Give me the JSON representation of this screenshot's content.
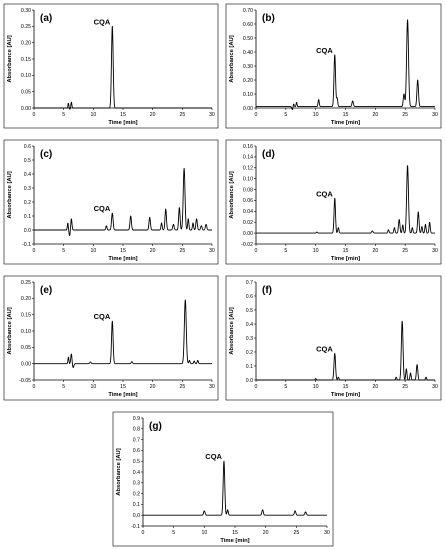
{
  "chart_data": [
    {
      "type": "line",
      "panel_label": "(a)",
      "xlabel": "Time [min]",
      "ylabel": "Absorbance [AU]",
      "xlim": [
        0,
        30
      ],
      "ylim": [
        0,
        0.3
      ],
      "xticks": [
        0,
        5,
        10,
        15,
        20,
        25,
        30
      ],
      "yticks": [
        0,
        0.05,
        0.1,
        0.15,
        0.2,
        0.25,
        0.3
      ],
      "ytick_labels": [
        "0.00",
        "0.05",
        "0.10",
        "0.15",
        "0.20",
        "0.25",
        "0.30"
      ],
      "annotations": [
        {
          "text": "CQA",
          "x": 13.2,
          "y": 0.25
        }
      ],
      "baseline": 0.0,
      "peaks": [
        {
          "x": 5.8,
          "y": 0.015,
          "w": 0.08
        },
        {
          "x": 6.3,
          "y": 0.018,
          "w": 0.08
        },
        {
          "x": 13.2,
          "y": 0.25,
          "w": 0.14
        }
      ],
      "dips": [
        {
          "x": 6.0,
          "y": -0.004,
          "w": 0.1
        }
      ]
    },
    {
      "type": "line",
      "panel_label": "(b)",
      "xlabel": "Time [min]",
      "ylabel": "Absorbance [AU]",
      "xlim": [
        0,
        30
      ],
      "ylim": [
        0,
        0.7
      ],
      "xticks": [
        0,
        5,
        10,
        15,
        20,
        25,
        30
      ],
      "yticks": [
        0,
        0.1,
        0.2,
        0.3,
        0.4,
        0.5,
        0.6,
        0.7
      ],
      "ytick_labels": [
        "0.00",
        "0.10",
        "0.20",
        "0.30",
        "0.40",
        "0.50",
        "0.60",
        "0.70"
      ],
      "annotations": [
        {
          "text": "CQA",
          "x": 13.2,
          "y": 0.38
        }
      ],
      "baseline": 0.01,
      "peaks": [
        {
          "x": 6.3,
          "y": 0.03,
          "w": 0.08
        },
        {
          "x": 6.8,
          "y": 0.04,
          "w": 0.08
        },
        {
          "x": 10.5,
          "y": 0.06,
          "w": 0.1
        },
        {
          "x": 13.2,
          "y": 0.38,
          "w": 0.13
        },
        {
          "x": 13.6,
          "y": 0.07,
          "w": 0.1
        },
        {
          "x": 16.2,
          "y": 0.05,
          "w": 0.12
        },
        {
          "x": 24.8,
          "y": 0.1,
          "w": 0.12
        },
        {
          "x": 25.4,
          "y": 0.63,
          "w": 0.16
        },
        {
          "x": 27.1,
          "y": 0.2,
          "w": 0.13
        }
      ],
      "dips": [
        {
          "x": 6.1,
          "y": -0.012,
          "w": 0.1
        }
      ]
    },
    {
      "type": "line",
      "panel_label": "(c)",
      "xlabel": "Time [min]",
      "ylabel": "Absorbance [AU]",
      "xlim": [
        0,
        30
      ],
      "ylim": [
        -0.1,
        0.6
      ],
      "xticks": [
        0,
        5,
        10,
        15,
        20,
        25,
        30
      ],
      "yticks": [
        -0.1,
        0,
        0.1,
        0.2,
        0.3,
        0.4,
        0.5,
        0.6
      ],
      "ytick_labels": [
        "-0.1",
        "0.0",
        "0.1",
        "0.2",
        "0.3",
        "0.4",
        "0.5",
        "0.6"
      ],
      "annotations": [
        {
          "text": "CQA",
          "x": 13.2,
          "y": 0.12
        }
      ],
      "baseline": 0.0,
      "peaks": [
        {
          "x": 5.7,
          "y": 0.05,
          "w": 0.08
        },
        {
          "x": 6.3,
          "y": 0.08,
          "w": 0.1
        },
        {
          "x": 12.2,
          "y": 0.03,
          "w": 0.1
        },
        {
          "x": 13.2,
          "y": 0.12,
          "w": 0.13
        },
        {
          "x": 16.3,
          "y": 0.1,
          "w": 0.12
        },
        {
          "x": 19.5,
          "y": 0.09,
          "w": 0.12
        },
        {
          "x": 21.5,
          "y": 0.05,
          "w": 0.1
        },
        {
          "x": 22.2,
          "y": 0.15,
          "w": 0.12
        },
        {
          "x": 23.5,
          "y": 0.04,
          "w": 0.12
        },
        {
          "x": 24.5,
          "y": 0.16,
          "w": 0.12
        },
        {
          "x": 25.3,
          "y": 0.44,
          "w": 0.15
        },
        {
          "x": 26.0,
          "y": 0.08,
          "w": 0.1
        },
        {
          "x": 26.8,
          "y": 0.05,
          "w": 0.1
        },
        {
          "x": 27.4,
          "y": 0.08,
          "w": 0.12
        },
        {
          "x": 28.2,
          "y": 0.03,
          "w": 0.12
        },
        {
          "x": 29.0,
          "y": 0.04,
          "w": 0.12
        }
      ],
      "dips": [
        {
          "x": 6.0,
          "y": -0.04,
          "w": 0.1
        }
      ]
    },
    {
      "type": "line",
      "panel_label": "(d)",
      "xlabel": "Time [min]",
      "ylabel": "Absorbance [AU]",
      "xlim": [
        0,
        30
      ],
      "ylim": [
        -0.02,
        0.16
      ],
      "xticks": [
        0,
        5,
        10,
        15,
        20,
        25,
        30
      ],
      "yticks": [
        -0.02,
        0,
        0.02,
        0.04,
        0.06,
        0.08,
        0.1,
        0.12,
        0.14,
        0.16
      ],
      "ytick_labels": [
        "-0.02",
        "0.00",
        "0.02",
        "0.04",
        "0.06",
        "0.08",
        "0.10",
        "0.12",
        "0.14",
        "0.16"
      ],
      "annotations": [
        {
          "text": "CQA",
          "x": 13.2,
          "y": 0.064
        }
      ],
      "baseline": 0.0,
      "peaks": [
        {
          "x": 10.2,
          "y": 0.002,
          "w": 0.1
        },
        {
          "x": 13.2,
          "y": 0.064,
          "w": 0.12
        },
        {
          "x": 13.8,
          "y": 0.01,
          "w": 0.1
        },
        {
          "x": 19.5,
          "y": 0.004,
          "w": 0.12
        },
        {
          "x": 22.2,
          "y": 0.006,
          "w": 0.1
        },
        {
          "x": 23.2,
          "y": 0.01,
          "w": 0.1
        },
        {
          "x": 24.0,
          "y": 0.025,
          "w": 0.12
        },
        {
          "x": 24.6,
          "y": 0.015,
          "w": 0.1
        },
        {
          "x": 25.4,
          "y": 0.124,
          "w": 0.15
        },
        {
          "x": 26.2,
          "y": 0.01,
          "w": 0.1
        },
        {
          "x": 27.2,
          "y": 0.039,
          "w": 0.12
        },
        {
          "x": 27.8,
          "y": 0.012,
          "w": 0.1
        },
        {
          "x": 28.4,
          "y": 0.016,
          "w": 0.1
        },
        {
          "x": 29.1,
          "y": 0.02,
          "w": 0.1
        }
      ],
      "dips": []
    },
    {
      "type": "line",
      "panel_label": "(e)",
      "xlabel": "Time [min]",
      "ylabel": "Absorbance [AU]",
      "xlim": [
        0,
        30
      ],
      "ylim": [
        -0.05,
        0.25
      ],
      "xticks": [
        0,
        5,
        10,
        15,
        20,
        25,
        30
      ],
      "yticks": [
        -0.05,
        0,
        0.05,
        0.1,
        0.15,
        0.2,
        0.25
      ],
      "ytick_labels": [
        "-0.05",
        "0.00",
        "0.05",
        "0.10",
        "0.15",
        "0.20",
        "0.25"
      ],
      "annotations": [
        {
          "text": "CQA",
          "x": 13.2,
          "y": 0.13
        }
      ],
      "baseline": 0.0,
      "peaks": [
        {
          "x": 5.8,
          "y": 0.02,
          "w": 0.08
        },
        {
          "x": 6.3,
          "y": 0.03,
          "w": 0.1
        },
        {
          "x": 9.5,
          "y": 0.005,
          "w": 0.12
        },
        {
          "x": 13.2,
          "y": 0.13,
          "w": 0.13
        },
        {
          "x": 16.5,
          "y": 0.006,
          "w": 0.12
        },
        {
          "x": 25.5,
          "y": 0.195,
          "w": 0.16
        },
        {
          "x": 26.2,
          "y": 0.01,
          "w": 0.1
        },
        {
          "x": 27.0,
          "y": 0.008,
          "w": 0.1
        },
        {
          "x": 27.6,
          "y": 0.01,
          "w": 0.1
        }
      ],
      "dips": [
        {
          "x": 6.6,
          "y": -0.012,
          "w": 0.12
        }
      ]
    },
    {
      "type": "line",
      "panel_label": "(f)",
      "xlabel": "Time [min]",
      "ylabel": "Absorbance [AU]",
      "xlim": [
        0,
        30
      ],
      "ylim": [
        0,
        0.7
      ],
      "xticks": [
        0,
        5,
        10,
        15,
        20,
        25,
        30
      ],
      "yticks": [
        0,
        0.1,
        0.2,
        0.3,
        0.4,
        0.5,
        0.6,
        0.7
      ],
      "ytick_labels": [
        "0.0",
        "0.1",
        "0.2",
        "0.3",
        "0.4",
        "0.5",
        "0.6",
        "0.7"
      ],
      "annotations": [
        {
          "text": "CQA",
          "x": 13.2,
          "y": 0.19
        }
      ],
      "baseline": 0.0,
      "peaks": [
        {
          "x": 10.0,
          "y": 0.01,
          "w": 0.1
        },
        {
          "x": 13.2,
          "y": 0.19,
          "w": 0.13
        },
        {
          "x": 13.8,
          "y": 0.02,
          "w": 0.1
        },
        {
          "x": 23.5,
          "y": 0.02,
          "w": 0.1
        },
        {
          "x": 24.5,
          "y": 0.42,
          "w": 0.14
        },
        {
          "x": 25.2,
          "y": 0.08,
          "w": 0.1
        },
        {
          "x": 25.9,
          "y": 0.05,
          "w": 0.1
        },
        {
          "x": 27.0,
          "y": 0.11,
          "w": 0.12
        },
        {
          "x": 28.5,
          "y": 0.02,
          "w": 0.1
        }
      ],
      "dips": []
    },
    {
      "type": "line",
      "panel_label": "(g)",
      "xlabel": "Time [min]",
      "ylabel": "Absorbance [AU]",
      "xlim": [
        0,
        30
      ],
      "ylim": [
        -0.1,
        0.9
      ],
      "xticks": [
        0,
        5,
        10,
        15,
        20,
        25,
        30
      ],
      "yticks": [
        -0.1,
        0,
        0.1,
        0.2,
        0.3,
        0.4,
        0.5,
        0.6,
        0.7,
        0.8,
        0.9
      ],
      "ytick_labels": [
        "-0.1",
        "0.0",
        "0.1",
        "0.2",
        "0.3",
        "0.4",
        "0.5",
        "0.6",
        "0.7",
        "0.8",
        "0.9"
      ],
      "annotations": [
        {
          "text": "CQA",
          "x": 13.2,
          "y": 0.5
        }
      ],
      "baseline": 0.0,
      "peaks": [
        {
          "x": 10.0,
          "y": 0.04,
          "w": 0.12
        },
        {
          "x": 13.2,
          "y": 0.5,
          "w": 0.13
        },
        {
          "x": 13.8,
          "y": 0.05,
          "w": 0.1
        },
        {
          "x": 19.5,
          "y": 0.05,
          "w": 0.12
        },
        {
          "x": 24.8,
          "y": 0.04,
          "w": 0.12
        },
        {
          "x": 26.5,
          "y": 0.03,
          "w": 0.12
        }
      ],
      "dips": []
    }
  ]
}
